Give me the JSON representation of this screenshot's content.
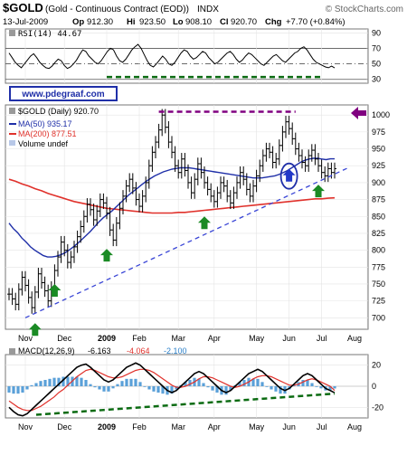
{
  "header": {
    "symbol": "$GOLD",
    "name": "(Gold - Continuous Contract (EOD))",
    "exchange": "INDX",
    "watermark": "© StockCharts.com",
    "date": "13-Jul-2009",
    "quote": {
      "op_label": "Op",
      "op": "912.30",
      "hi_label": "Hi",
      "hi": "923.50",
      "lo_label": "Lo",
      "lo": "908.10",
      "cl_label": "Cl",
      "cl": "920.70",
      "chg_label": "Chg",
      "chg": "+7.70 (+0.84%)"
    }
  },
  "brand_box": "www.pdegraaf.com",
  "colors": {
    "price": "#000000",
    "ma50": "#1f2fa8",
    "ma200": "#e0312b",
    "up_arrow": "#1a8a24",
    "trendline": "#3a46d6",
    "resistance": "#800080",
    "macd_hist": "#5aa0d8",
    "macd_signal": "#e0312b",
    "macd_dash": "#0b6b12"
  },
  "chart_data": [
    {
      "type": "line",
      "panel": "RSI",
      "label": "RSI(14) 44.67",
      "y_ticks": [
        30,
        50,
        70,
        90
      ],
      "ylim": [
        25,
        95
      ],
      "reference_lines": [
        30,
        50,
        70
      ],
      "values": [
        64,
        58,
        52,
        48,
        45,
        50,
        55,
        60,
        63,
        58,
        52,
        48,
        45,
        44,
        47,
        52,
        56,
        54,
        48,
        44,
        46,
        50,
        55,
        62,
        68,
        66,
        60,
        56,
        52,
        50,
        54,
        60,
        66,
        70,
        68,
        60,
        54,
        52,
        56,
        62,
        68,
        72,
        75,
        70,
        62,
        54,
        48,
        46,
        50,
        55,
        60,
        56,
        50,
        48,
        52,
        58,
        64,
        68,
        66,
        60,
        56,
        58,
        62,
        66,
        64,
        58,
        54,
        50,
        52,
        56,
        60,
        64,
        66,
        62,
        56,
        52,
        55,
        60,
        64,
        62,
        58,
        54,
        50,
        48,
        52,
        56,
        60,
        62,
        58,
        54,
        52,
        56,
        60,
        64,
        66,
        70,
        72,
        68,
        62,
        56,
        52,
        50,
        48,
        46,
        45,
        47,
        44.67
      ],
      "support_dash": {
        "level": 33
      }
    },
    {
      "type": "line",
      "panel": "Price",
      "legend": {
        "title": "$GOLD (Daily) 920.70",
        "ma50": "MA(50) 935.17",
        "ma200": "MA(200) 877.51",
        "volume": "Volume undef"
      },
      "x_ticks": [
        "Nov",
        "Dec",
        "2009",
        "Feb",
        "Mar",
        "Apr",
        "May",
        "Jun",
        "Jul",
        "Aug"
      ],
      "y_ticks": [
        700,
        725,
        750,
        775,
        800,
        825,
        850,
        875,
        900,
        925,
        950,
        975,
        1000
      ],
      "ylim": [
        683,
        1015
      ],
      "close": [
        735,
        728,
        720,
        742,
        760,
        748,
        730,
        715,
        738,
        765,
        752,
        740,
        725,
        745,
        770,
        790,
        812,
        800,
        782,
        790,
        805,
        820,
        835,
        850,
        868,
        860,
        845,
        858,
        875,
        870,
        855,
        830,
        815,
        840,
        862,
        880,
        895,
        905,
        892,
        875,
        865,
        880,
        900,
        925,
        945,
        960,
        978,
        1000,
        982,
        960,
        945,
        925,
        915,
        935,
        918,
        900,
        885,
        905,
        928,
        915,
        900,
        890,
        880,
        872,
        885,
        900,
        895,
        880,
        870,
        885,
        900,
        915,
        905,
        890,
        880,
        895,
        910,
        925,
        940,
        950,
        945,
        930,
        935,
        955,
        975,
        990,
        980,
        965,
        950,
        940,
        930,
        925,
        940,
        948,
        935,
        925,
        915,
        910,
        920.7,
        915,
        920.7
      ],
      "ma50": [
        840,
        832,
        826,
        818,
        812,
        805,
        800,
        796,
        792,
        790,
        790,
        791,
        793,
        796,
        800,
        805,
        810,
        816,
        822,
        828,
        835,
        842,
        848,
        853,
        858,
        864,
        870,
        876,
        882,
        887,
        892,
        897,
        902,
        906,
        910,
        913,
        916,
        918,
        920,
        921,
        922,
        922,
        922,
        921,
        920,
        919,
        918,
        917,
        916,
        915,
        914,
        913,
        912,
        911,
        910,
        909,
        908,
        907,
        907,
        907,
        908,
        909,
        910,
        912,
        915,
        918,
        922,
        926,
        930,
        933,
        935,
        936,
        936,
        935,
        934,
        935.17,
        935.17
      ],
      "ma200": [
        905,
        902,
        898,
        895,
        891,
        888,
        884,
        881,
        878,
        875,
        872,
        870,
        868,
        866,
        864,
        862,
        861,
        860,
        859,
        858,
        857,
        856,
        855,
        855,
        855,
        855,
        856,
        856,
        857,
        858,
        859,
        860,
        861,
        862,
        863,
        864,
        865,
        866,
        867,
        868,
        869,
        870,
        871,
        872,
        873,
        874,
        875,
        876,
        876,
        877,
        877.51
      ],
      "up_arrows": [
        {
          "x_index": 8,
          "value": 700
        },
        {
          "x_index": 14,
          "value": 758
        },
        {
          "x_index": 30,
          "value": 810
        },
        {
          "x_index": 60,
          "value": 858
        },
        {
          "x_index": 95,
          "value": 905
        }
      ],
      "circled_arrow": {
        "x_index": 86,
        "value": 915
      },
      "trendline": {
        "from": [
          5,
          700
        ],
        "to": [
          101,
          917
        ]
      },
      "resistance": {
        "from": [
          46,
          1005
        ],
        "to": [
          88,
          1005
        ]
      },
      "side_arrow_value": 1003
    },
    {
      "type": "line",
      "panel": "MACD",
      "label_prefix": "MACD(12,26,9)",
      "macd": "-6.163",
      "signal": "-4.064",
      "hist": "-2.100",
      "y_ticks": [
        -20,
        0,
        20
      ],
      "ylim": [
        -30,
        30
      ],
      "macd_values": [
        -20,
        -24,
        -27,
        -28,
        -26,
        -22,
        -18,
        -14,
        -10,
        -6,
        -2,
        2,
        6,
        10,
        14,
        18,
        20,
        21,
        18,
        14,
        10,
        6,
        4,
        6,
        10,
        14,
        18,
        20,
        22,
        20,
        16,
        12,
        8,
        4,
        0,
        -4,
        -6,
        -4,
        0,
        4,
        8,
        12,
        14,
        12,
        8,
        4,
        0,
        -4,
        -6,
        -4,
        0,
        4,
        8,
        12,
        14,
        16,
        14,
        10,
        6,
        2,
        -2,
        -4,
        -2,
        2,
        6,
        10,
        12,
        10,
        6,
        2,
        -2,
        -4,
        -6.163
      ],
      "signal_values": [
        -14,
        -17,
        -20,
        -22,
        -23,
        -23,
        -21,
        -19,
        -16,
        -13,
        -10,
        -6,
        -3,
        1,
        5,
        9,
        12,
        15,
        16,
        15,
        13,
        11,
        9,
        8,
        8,
        9,
        11,
        13,
        15,
        16,
        16,
        15,
        13,
        10,
        7,
        4,
        1,
        -1,
        -1,
        0,
        2,
        4,
        7,
        9,
        9,
        8,
        6,
        4,
        2,
        0,
        -1,
        0,
        2,
        4,
        7,
        9,
        10,
        10,
        9,
        7,
        5,
        3,
        1,
        1,
        2,
        4,
        6,
        7,
        6,
        4,
        2,
        0,
        -4.064
      ],
      "support_dash": {
        "from": [
          0,
          -27
        ],
        "to": [
          72,
          -7
        ]
      }
    }
  ]
}
